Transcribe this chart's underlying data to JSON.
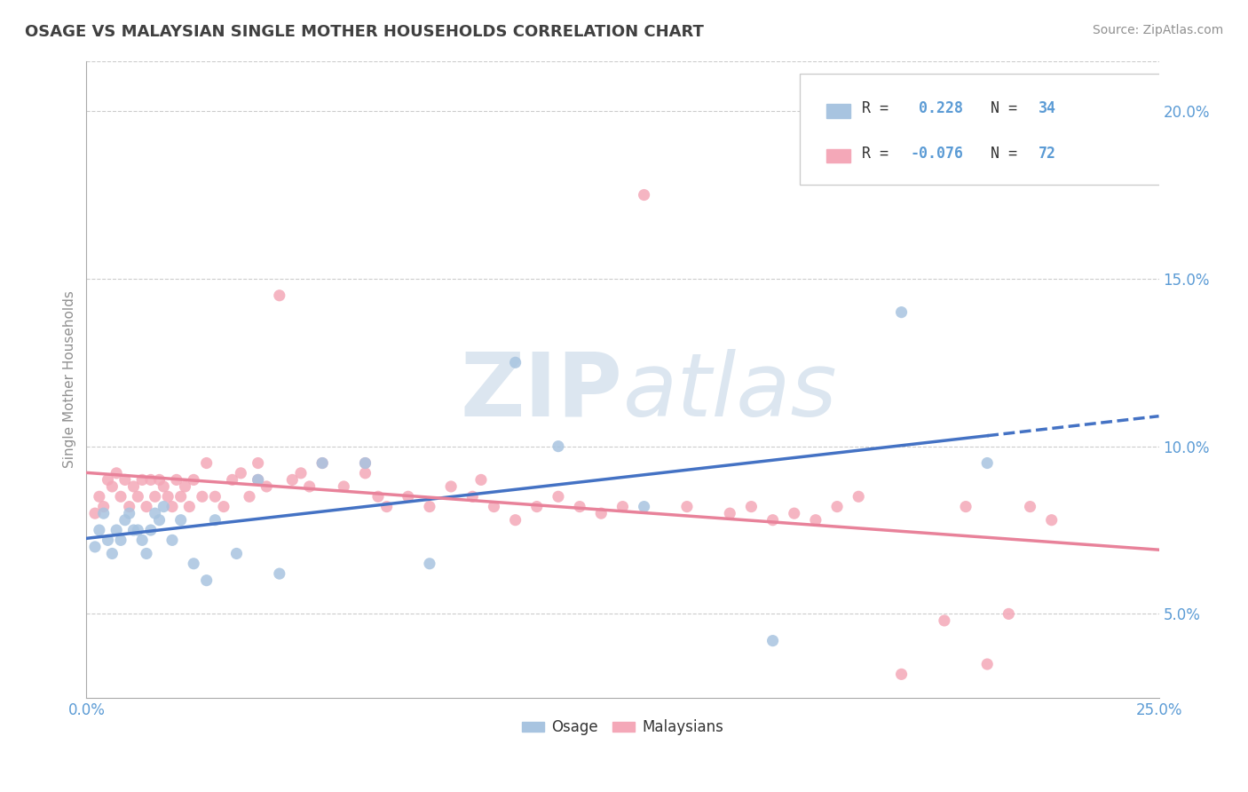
{
  "title": "OSAGE VS MALAYSIAN SINGLE MOTHER HOUSEHOLDS CORRELATION CHART",
  "source": "Source: ZipAtlas.com",
  "ylabel": "Single Mother Households",
  "xlim": [
    0.0,
    0.25
  ],
  "ylim": [
    0.025,
    0.215
  ],
  "yticks": [
    0.05,
    0.1,
    0.15,
    0.2
  ],
  "ytick_labels": [
    "5.0%",
    "10.0%",
    "15.0%",
    "20.0%"
  ],
  "osage_color": "#a8c4e0",
  "malaysian_color": "#f4a8b8",
  "osage_line_color": "#4472c4",
  "malaysian_line_color": "#e8829a",
  "osage_R": 0.228,
  "osage_N": 34,
  "malaysian_R": -0.076,
  "malaysian_N": 72,
  "osage_x": [
    0.002,
    0.003,
    0.004,
    0.005,
    0.006,
    0.007,
    0.008,
    0.009,
    0.01,
    0.011,
    0.012,
    0.013,
    0.014,
    0.015,
    0.016,
    0.017,
    0.018,
    0.02,
    0.022,
    0.025,
    0.028,
    0.03,
    0.035,
    0.04,
    0.045,
    0.055,
    0.065,
    0.08,
    0.1,
    0.11,
    0.13,
    0.16,
    0.19,
    0.21
  ],
  "osage_y": [
    0.07,
    0.075,
    0.08,
    0.072,
    0.068,
    0.075,
    0.072,
    0.078,
    0.08,
    0.075,
    0.075,
    0.072,
    0.068,
    0.075,
    0.08,
    0.078,
    0.082,
    0.072,
    0.078,
    0.065,
    0.06,
    0.078,
    0.068,
    0.09,
    0.062,
    0.095,
    0.095,
    0.065,
    0.125,
    0.1,
    0.082,
    0.042,
    0.14,
    0.095
  ],
  "malaysian_x": [
    0.002,
    0.003,
    0.004,
    0.005,
    0.006,
    0.007,
    0.008,
    0.009,
    0.01,
    0.011,
    0.012,
    0.013,
    0.014,
    0.015,
    0.016,
    0.017,
    0.018,
    0.019,
    0.02,
    0.021,
    0.022,
    0.023,
    0.024,
    0.025,
    0.027,
    0.028,
    0.03,
    0.032,
    0.034,
    0.036,
    0.038,
    0.04,
    0.042,
    0.045,
    0.048,
    0.05,
    0.052,
    0.055,
    0.06,
    0.065,
    0.068,
    0.07,
    0.075,
    0.08,
    0.085,
    0.09,
    0.092,
    0.095,
    0.1,
    0.105,
    0.11,
    0.115,
    0.12,
    0.125,
    0.13,
    0.14,
    0.15,
    0.155,
    0.16,
    0.165,
    0.17,
    0.175,
    0.18,
    0.19,
    0.2,
    0.205,
    0.21,
    0.215,
    0.22,
    0.225,
    0.04,
    0.065
  ],
  "malaysian_y": [
    0.08,
    0.085,
    0.082,
    0.09,
    0.088,
    0.092,
    0.085,
    0.09,
    0.082,
    0.088,
    0.085,
    0.09,
    0.082,
    0.09,
    0.085,
    0.09,
    0.088,
    0.085,
    0.082,
    0.09,
    0.085,
    0.088,
    0.082,
    0.09,
    0.085,
    0.095,
    0.085,
    0.082,
    0.09,
    0.092,
    0.085,
    0.09,
    0.088,
    0.145,
    0.09,
    0.092,
    0.088,
    0.095,
    0.088,
    0.092,
    0.085,
    0.082,
    0.085,
    0.082,
    0.088,
    0.085,
    0.09,
    0.082,
    0.078,
    0.082,
    0.085,
    0.082,
    0.08,
    0.082,
    0.175,
    0.082,
    0.08,
    0.082,
    0.078,
    0.08,
    0.078,
    0.082,
    0.085,
    0.032,
    0.048,
    0.082,
    0.035,
    0.05,
    0.082,
    0.078,
    0.095,
    0.095
  ],
  "background_color": "#ffffff",
  "grid_color": "#cccccc",
  "title_color": "#404040",
  "source_color": "#909090",
  "axis_label_color": "#909090",
  "tick_color": "#5b9bd5",
  "watermark_color": "#dce6f0",
  "watermark_alpha": 0.9
}
